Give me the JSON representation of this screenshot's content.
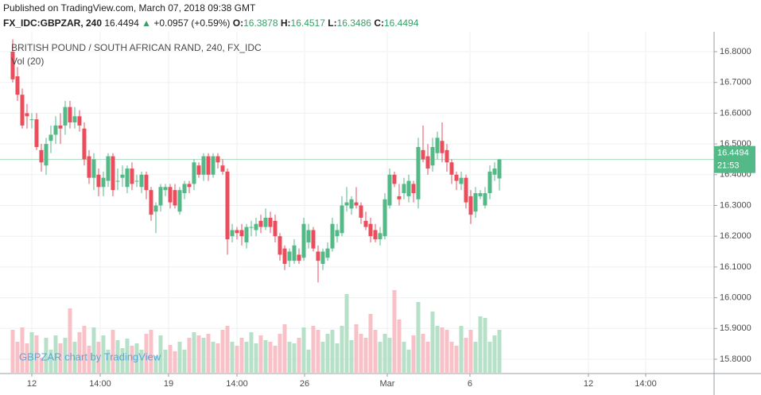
{
  "chart_data": {
    "type": "candlestick",
    "published": "Published on TradingView.com, March 07, 2018 09:38 GMT",
    "symbol": "FX_IDC:GBPZAR, 240",
    "last": "16.4494",
    "arrow": "▲",
    "change": "+0.0957 (+0.59%)",
    "o_label": "O:",
    "open": "16.3878",
    "h_label": "H:",
    "high": "16.4517",
    "l_label": "L:",
    "low": "16.3486",
    "c_label": "C:",
    "close": "16.4494",
    "title": "BRITISH POUND / SOUTH AFRICAN RAND, 240, FX_IDC",
    "volume_label": "Vol (20)",
    "watermark": "GBPZAR chart by TradingView",
    "countdown": "21:53",
    "up_color": "#53b987",
    "down_color": "#eb4d5c",
    "volume_up_color": "#b7e0c9",
    "volume_down_color": "#f7c1c7",
    "grid": true,
    "ylim": [
      15.7535,
      16.8646
    ],
    "yticks": [
      {
        "value": 15.8,
        "label": "15.8000"
      },
      {
        "value": 15.9,
        "label": "15.9000"
      },
      {
        "value": 16.0,
        "label": "16.0000"
      },
      {
        "value": 16.1,
        "label": "16.1000"
      },
      {
        "value": 16.2,
        "label": "16.2000"
      },
      {
        "value": 16.3,
        "label": "16.3000"
      },
      {
        "value": 16.4,
        "label": "16.4000"
      },
      {
        "value": 16.5,
        "label": "16.5000"
      },
      {
        "value": 16.6,
        "label": "16.6000"
      },
      {
        "value": 16.7,
        "label": "16.7000"
      },
      {
        "value": 16.8,
        "label": "16.8000"
      }
    ],
    "xlim": [
      -1.33,
      147
    ],
    "xticks": [
      {
        "value": 4,
        "label": "12"
      },
      {
        "value": 18.33,
        "label": "14:00"
      },
      {
        "value": 32.67,
        "label": "19"
      },
      {
        "value": 47,
        "label": "14:00"
      },
      {
        "value": 61.17,
        "label": "26"
      },
      {
        "value": 78.5,
        "label": "Mar"
      },
      {
        "value": 95.83,
        "label": "6"
      },
      {
        "value": 120.67,
        "label": "12"
      },
      {
        "value": 132.67,
        "label": "14:00"
      }
    ],
    "last_price": 16.4494,
    "candles": [
      [
        16.8,
        16.84,
        16.7,
        16.71
      ],
      [
        16.72,
        16.75,
        16.64,
        16.66
      ],
      [
        16.66,
        16.68,
        16.55,
        16.56
      ],
      [
        16.6,
        16.63,
        16.55,
        16.59
      ],
      [
        16.58,
        16.6,
        16.55,
        16.58
      ],
      [
        16.58,
        16.6,
        16.48,
        16.49
      ],
      [
        16.48,
        16.5,
        16.41,
        16.44
      ],
      [
        16.43,
        16.52,
        16.4,
        16.5
      ],
      [
        16.51,
        16.56,
        16.47,
        16.53
      ],
      [
        16.53,
        16.59,
        16.5,
        16.56
      ],
      [
        16.56,
        16.6,
        16.5,
        16.55
      ],
      [
        16.56,
        16.64,
        16.53,
        16.62
      ],
      [
        16.62,
        16.64,
        16.55,
        16.57
      ],
      [
        16.57,
        16.62,
        16.55,
        16.59
      ],
      [
        16.59,
        16.61,
        16.54,
        16.56
      ],
      [
        16.55,
        16.57,
        16.43,
        16.45
      ],
      [
        16.46,
        16.48,
        16.37,
        16.39
      ],
      [
        16.39,
        16.47,
        16.35,
        16.45
      ],
      [
        16.4,
        16.42,
        16.33,
        16.36
      ],
      [
        16.36,
        16.41,
        16.33,
        16.39
      ],
      [
        16.38,
        16.47,
        16.36,
        16.46
      ],
      [
        16.46,
        16.47,
        16.33,
        16.35
      ],
      [
        16.38,
        16.42,
        16.35,
        16.38
      ],
      [
        16.39,
        16.43,
        16.36,
        16.4
      ],
      [
        16.36,
        16.43,
        16.34,
        16.42
      ],
      [
        16.42,
        16.44,
        16.35,
        16.37
      ],
      [
        16.38,
        16.4,
        16.36,
        16.38
      ],
      [
        16.36,
        16.41,
        16.34,
        16.4
      ],
      [
        16.4,
        16.41,
        16.32,
        16.35
      ],
      [
        16.35,
        16.36,
        16.25,
        16.27
      ],
      [
        16.28,
        16.31,
        16.21,
        16.3
      ],
      [
        16.3,
        16.37,
        16.28,
        16.36
      ],
      [
        16.35,
        16.37,
        16.33,
        16.36
      ],
      [
        16.36,
        16.37,
        16.29,
        16.31
      ],
      [
        16.35,
        16.37,
        16.29,
        16.3
      ],
      [
        16.28,
        16.36,
        16.27,
        16.35
      ],
      [
        16.34,
        16.38,
        16.32,
        16.37
      ],
      [
        16.37,
        16.38,
        16.34,
        16.36
      ],
      [
        16.37,
        16.45,
        16.35,
        16.44
      ],
      [
        16.43,
        16.44,
        16.39,
        16.4
      ],
      [
        16.4,
        16.47,
        16.38,
        16.46
      ],
      [
        16.46,
        16.47,
        16.38,
        16.4
      ],
      [
        16.4,
        16.47,
        16.39,
        16.46
      ],
      [
        16.46,
        16.47,
        16.42,
        16.44
      ],
      [
        16.43,
        16.45,
        16.4,
        16.41
      ],
      [
        16.41,
        16.42,
        16.14,
        16.19
      ],
      [
        16.2,
        16.24,
        16.18,
        16.22
      ],
      [
        16.22,
        16.23,
        16.19,
        16.21
      ],
      [
        16.22,
        16.24,
        16.17,
        16.2
      ],
      [
        16.18,
        16.24,
        16.16,
        16.23
      ],
      [
        16.23,
        16.25,
        16.2,
        16.23
      ],
      [
        16.22,
        16.26,
        16.2,
        16.24
      ],
      [
        16.25,
        16.27,
        16.21,
        16.23
      ],
      [
        16.23,
        16.29,
        16.22,
        16.26
      ],
      [
        16.26,
        16.28,
        16.21,
        16.23
      ],
      [
        16.25,
        16.27,
        16.18,
        16.2
      ],
      [
        16.2,
        16.21,
        16.12,
        16.14
      ],
      [
        16.16,
        16.17,
        16.09,
        16.11
      ],
      [
        16.12,
        16.16,
        16.1,
        16.15
      ],
      [
        16.12,
        16.19,
        16.11,
        16.17
      ],
      [
        16.14,
        16.16,
        16.11,
        16.12
      ],
      [
        16.13,
        16.26,
        16.12,
        16.24
      ],
      [
        16.18,
        16.24,
        16.16,
        16.22
      ],
      [
        16.22,
        16.23,
        16.15,
        16.16
      ],
      [
        16.15,
        16.17,
        16.05,
        16.12
      ],
      [
        16.11,
        16.16,
        16.09,
        16.15
      ],
      [
        16.13,
        16.18,
        16.12,
        16.16
      ],
      [
        16.16,
        16.26,
        16.15,
        16.24
      ],
      [
        16.2,
        16.24,
        16.18,
        16.22
      ],
      [
        16.21,
        16.33,
        16.2,
        16.3
      ],
      [
        16.3,
        16.36,
        16.28,
        16.31
      ],
      [
        16.29,
        16.33,
        16.27,
        16.32
      ],
      [
        16.31,
        16.36,
        16.29,
        16.3
      ],
      [
        16.3,
        16.31,
        16.24,
        16.26
      ],
      [
        16.25,
        16.28,
        16.22,
        16.23
      ],
      [
        16.24,
        16.26,
        16.18,
        16.2
      ],
      [
        16.22,
        16.24,
        16.18,
        16.19
      ],
      [
        16.19,
        16.23,
        16.17,
        16.21
      ],
      [
        16.2,
        16.34,
        16.19,
        16.32
      ],
      [
        16.3,
        16.42,
        16.29,
        16.4
      ],
      [
        16.4,
        16.41,
        16.36,
        16.37
      ],
      [
        16.33,
        16.37,
        16.3,
        16.32
      ],
      [
        16.34,
        16.39,
        16.32,
        16.37
      ],
      [
        16.33,
        16.4,
        16.31,
        16.38
      ],
      [
        16.37,
        16.38,
        16.31,
        16.34
      ],
      [
        16.32,
        16.52,
        16.29,
        16.49
      ],
      [
        16.48,
        16.56,
        16.44,
        16.45
      ],
      [
        16.46,
        16.5,
        16.4,
        16.42
      ],
      [
        16.43,
        16.52,
        16.41,
        16.49
      ],
      [
        16.47,
        16.54,
        16.45,
        16.52
      ],
      [
        16.51,
        16.57,
        16.44,
        16.47
      ],
      [
        16.48,
        16.5,
        16.41,
        16.44
      ],
      [
        16.44,
        16.45,
        16.37,
        16.4
      ],
      [
        16.4,
        16.41,
        16.35,
        16.38
      ],
      [
        16.37,
        16.41,
        16.35,
        16.39
      ],
      [
        16.39,
        16.4,
        16.29,
        16.31
      ],
      [
        16.33,
        16.35,
        16.24,
        16.27
      ],
      [
        16.28,
        16.36,
        16.26,
        16.34
      ],
      [
        16.33,
        16.35,
        16.32,
        16.34
      ],
      [
        16.3,
        16.36,
        16.29,
        16.34
      ],
      [
        16.34,
        16.43,
        16.32,
        16.41
      ],
      [
        16.4,
        16.44,
        16.38,
        16.42
      ],
      [
        16.3878,
        16.4517,
        16.3486,
        16.4494
      ]
    ],
    "volume": [
      55,
      40,
      58,
      38,
      52,
      48,
      20,
      45,
      30,
      48,
      38,
      45,
      82,
      40,
      52,
      60,
      35,
      58,
      40,
      48,
      30,
      55,
      42,
      32,
      44,
      35,
      38,
      30,
      50,
      55,
      22,
      48,
      30,
      36,
      28,
      40,
      30,
      45,
      52,
      48,
      45,
      50,
      40,
      38,
      55,
      60,
      40,
      35,
      45,
      40,
      52,
      38,
      48,
      42,
      40,
      35,
      50,
      62,
      40,
      38,
      45,
      58,
      30,
      60,
      55,
      40,
      50,
      55,
      38,
      60,
      100,
      42,
      62,
      50,
      45,
      75,
      55,
      40,
      50,
      45,
      105,
      68,
      40,
      30,
      48,
      90,
      50,
      40,
      78,
      60,
      58,
      55,
      40,
      35,
      60,
      45,
      55,
      40,
      72,
      70,
      40,
      48,
      55
    ]
  }
}
